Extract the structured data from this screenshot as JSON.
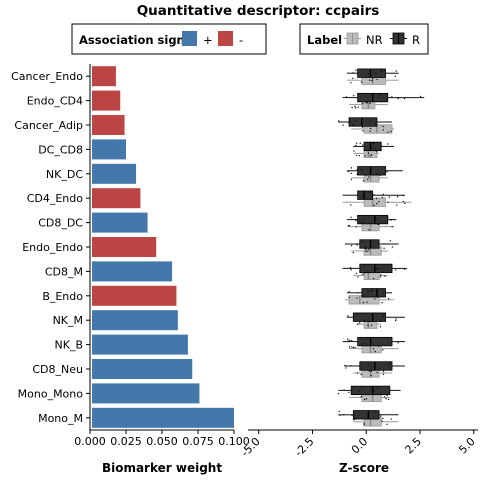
{
  "title": "Quantitative descriptor: ccpairs",
  "legends": {
    "association": {
      "title": "Association sign",
      "items": [
        {
          "label": "+",
          "color": "#4477AA"
        },
        {
          "label": "-",
          "color": "#BB4444"
        }
      ]
    },
    "label": {
      "title": "Label",
      "items": [
        {
          "label": "NR",
          "color": "#BBBBBB"
        },
        {
          "label": "R",
          "color": "#333333"
        }
      ]
    }
  },
  "chart_data": [
    {
      "type": "bar",
      "orientation": "horizontal",
      "xlabel": "Biomarker weight",
      "xlim": [
        0,
        0.1
      ],
      "xticks": [
        "0.000",
        "0.025",
        "0.050",
        "0.075",
        "0.100"
      ],
      "xtick_values": [
        0,
        0.025,
        0.05,
        0.075,
        0.1
      ],
      "categories": [
        "Cancer_Endo",
        "Endo_CD4",
        "Cancer_Adip",
        "DC_CD8",
        "NK_DC",
        "CD4_Endo",
        "CD8_DC",
        "Endo_Endo",
        "CD8_M",
        "B_Endo",
        "NK_M",
        "NK_B",
        "CD8_Neu",
        "Mono_Mono",
        "Mono_M"
      ],
      "values": [
        0.018,
        0.021,
        0.024,
        0.025,
        0.032,
        0.035,
        0.04,
        0.046,
        0.057,
        0.06,
        0.061,
        0.068,
        0.071,
        0.076,
        0.1
      ],
      "sign": [
        "-",
        "-",
        "-",
        "+",
        "+",
        "-",
        "+",
        "-",
        "+",
        "-",
        "+",
        "+",
        "+",
        "+",
        "+"
      ]
    },
    {
      "type": "box",
      "orientation": "horizontal",
      "xlabel": "Z-score",
      "xlim": [
        -5.5,
        5.2
      ],
      "xticks": [
        "-5.0",
        "-2.5",
        "0.0",
        "2.5",
        "5.0"
      ],
      "xtick_values": [
        -5,
        -2.5,
        0,
        2.5,
        5
      ],
      "categories": [
        "Cancer_Endo",
        "Endo_CD4",
        "Cancer_Adip",
        "DC_CD8",
        "NK_DC",
        "CD4_Endo",
        "CD8_DC",
        "Endo_Endo",
        "CD8_M",
        "B_Endo",
        "NK_M",
        "NK_B",
        "CD8_Neu",
        "Mono_Mono",
        "Mono_M"
      ],
      "series": [
        {
          "name": "R",
          "boxes": [
            {
              "min": -0.9,
              "q1": -0.4,
              "median": 0.2,
              "q3": 0.9,
              "max": 1.5
            },
            {
              "min": -1.1,
              "q1": -0.4,
              "median": 0.3,
              "q3": 1.0,
              "max": 2.7
            },
            {
              "min": -1.3,
              "q1": -0.8,
              "median": -0.2,
              "q3": 0.5,
              "max": 1.2
            },
            {
              "min": -0.6,
              "q1": -0.1,
              "median": 0.2,
              "q3": 0.7,
              "max": 1.3
            },
            {
              "min": -0.9,
              "q1": -0.4,
              "median": 0.2,
              "q3": 0.9,
              "max": 1.7
            },
            {
              "min": -1.1,
              "q1": -0.4,
              "median": -0.1,
              "q3": 0.3,
              "max": 1.8
            },
            {
              "min": -0.9,
              "q1": -0.4,
              "median": 0.4,
              "q3": 1.0,
              "max": 1.4
            },
            {
              "min": -1.0,
              "q1": -0.3,
              "median": 0.2,
              "q3": 0.6,
              "max": 1.5
            },
            {
              "min": -1.1,
              "q1": -0.3,
              "median": 0.4,
              "q3": 1.2,
              "max": 1.9
            },
            {
              "min": -0.9,
              "q1": -0.2,
              "median": 0.5,
              "q3": 0.9,
              "max": 1.2
            },
            {
              "min": -0.9,
              "q1": -0.6,
              "median": 0.3,
              "q3": 0.9,
              "max": 1.8
            },
            {
              "min": -1.1,
              "q1": -0.4,
              "median": 0.2,
              "q3": 1.2,
              "max": 1.8
            },
            {
              "min": -1.0,
              "q1": -0.3,
              "median": 0.4,
              "q3": 1.2,
              "max": 1.8
            },
            {
              "min": -1.3,
              "q1": -0.7,
              "median": 0.3,
              "q3": 1.1,
              "max": 1.6
            },
            {
              "min": -1.3,
              "q1": -0.6,
              "median": 0.1,
              "q3": 0.6,
              "max": 1.5
            }
          ]
        },
        {
          "name": "NR",
          "boxes": [
            {
              "min": -0.9,
              "q1": -0.2,
              "median": 0.3,
              "q3": 0.9,
              "max": 1.5
            },
            {
              "min": -0.8,
              "q1": -0.2,
              "median": 0.1,
              "q3": 0.4,
              "max": 1.0
            },
            {
              "min": -0.7,
              "q1": -0.1,
              "median": 0.5,
              "q3": 1.2,
              "max": 1.3
            },
            {
              "min": -0.6,
              "q1": -0.1,
              "median": 0.1,
              "q3": 0.5,
              "max": 0.6
            },
            {
              "min": -0.7,
              "q1": -0.1,
              "median": 0.2,
              "q3": 0.6,
              "max": 1.0
            },
            {
              "min": -1.1,
              "q1": -0.1,
              "median": 0.3,
              "q3": 0.9,
              "max": 2.1
            },
            {
              "min": -0.9,
              "q1": -0.2,
              "median": 0.2,
              "q3": 0.6,
              "max": 1.3
            },
            {
              "min": -0.7,
              "q1": -0.1,
              "median": 0.2,
              "q3": 0.7,
              "max": 1.0
            },
            {
              "min": -0.6,
              "q1": -0.1,
              "median": 0.1,
              "q3": 0.6,
              "max": 1.0
            },
            {
              "min": -1.0,
              "q1": -0.8,
              "median": -0.3,
              "q3": 0.6,
              "max": 1.3
            },
            {
              "min": -0.4,
              "q1": -0.1,
              "median": 0.1,
              "q3": 0.5,
              "max": 0.7
            },
            {
              "min": -0.8,
              "q1": -0.2,
              "median": 0.2,
              "q3": 0.7,
              "max": 1.5
            },
            {
              "min": -0.6,
              "q1": -0.2,
              "median": 0.2,
              "q3": 0.6,
              "max": 1.2
            },
            {
              "min": -0.8,
              "q1": -0.2,
              "median": 0.3,
              "q3": 0.7,
              "max": 1.1
            },
            {
              "min": -0.6,
              "q1": -0.1,
              "median": 0.2,
              "q3": 0.7,
              "max": 1.5
            }
          ]
        }
      ]
    }
  ]
}
